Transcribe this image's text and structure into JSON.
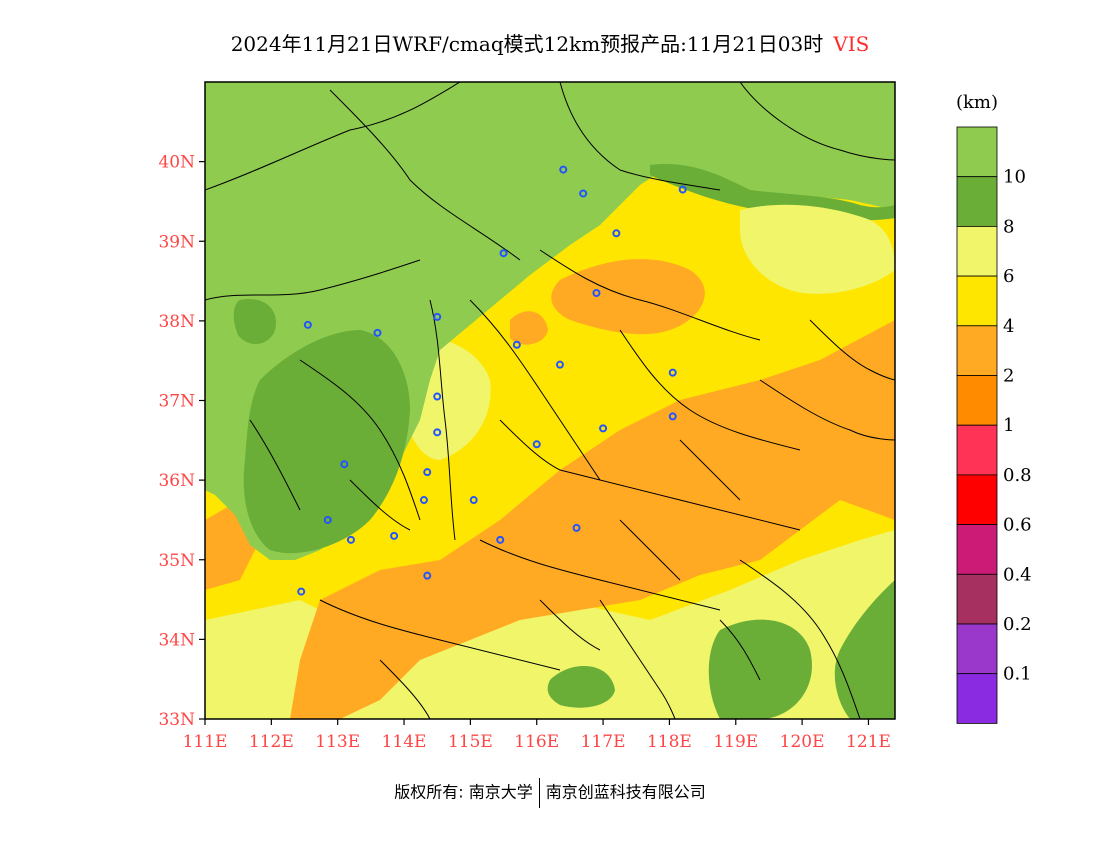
{
  "title": {
    "text": "2024年11月21日WRF/cmaq模式12km预报产品:11月21日03时",
    "variable": "VIS"
  },
  "map": {
    "lat_labels": [
      "40N",
      "39N",
      "38N",
      "37N",
      "36N",
      "35N",
      "34N",
      "33N"
    ],
    "lon_labels": [
      "111E",
      "112E",
      "113E",
      "114E",
      "115E",
      "116E",
      "117E",
      "118E",
      "119E",
      "120E",
      "121E"
    ],
    "lat_range": [
      33,
      41
    ],
    "lon_range": [
      111,
      121.4
    ],
    "colors": {
      "gt10": "#8ecb4f",
      "8to10": "#6aad37",
      "6to8": "#f0f56a",
      "4to6": "#ffe600",
      "2to4": "#ffaa22",
      "1to2": "#ff8c00",
      "boundary": "#000000",
      "city_marker": "#2255ff"
    }
  },
  "legend": {
    "unit": "(km)",
    "labels": [
      "10",
      "8",
      "6",
      "4",
      "2",
      "1",
      "0.8",
      "0.6",
      "0.4",
      "0.2",
      "0.1"
    ],
    "colors": [
      "#8ecb4f",
      "#6aad37",
      "#f0f56a",
      "#ffe600",
      "#ffaa22",
      "#ff8c00",
      "#ff3355",
      "#ff0000",
      "#cc1a77",
      "#a63060",
      "#9a38cc",
      "#8a2be2"
    ]
  },
  "footer": {
    "left": "版权所有: 南京大学",
    "right": "南京创蓝科技有限公司"
  }
}
